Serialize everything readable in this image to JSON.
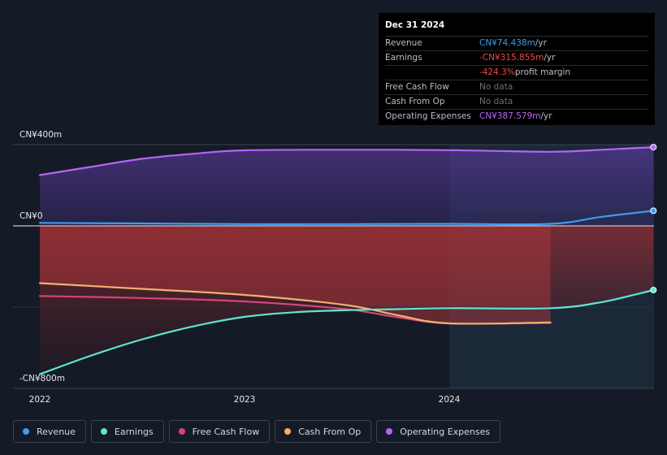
{
  "tooltip": {
    "date": "Dec 31 2024",
    "rows": [
      {
        "label": "Revenue",
        "value": "CN¥74.438m",
        "unit": "/yr",
        "color": "#3b9ded"
      },
      {
        "label": "Earnings",
        "value": "-CN¥315.855m",
        "unit": "/yr",
        "color": "#f04848"
      },
      {
        "label": "",
        "value": "-424.3%",
        "unit": "profit margin",
        "color": "#f04848"
      },
      {
        "label": "Free Cash Flow",
        "value": "No data",
        "unit": "",
        "color": "#6a717c"
      },
      {
        "label": "Cash From Op",
        "value": "No data",
        "unit": "",
        "color": "#6a717c"
      },
      {
        "label": "Operating Expenses",
        "value": "CN¥387.579m",
        "unit": "/yr",
        "color": "#b565f5"
      }
    ]
  },
  "axis": {
    "y_top": "CN¥400m",
    "y_zero": "CN¥0",
    "y_bottom": "-CN¥800m"
  },
  "legend": [
    {
      "label": "Revenue",
      "color": "#3b9ded"
    },
    {
      "label": "Earnings",
      "color": "#5ee6d0"
    },
    {
      "label": "Free Cash Flow",
      "color": "#d2457b"
    },
    {
      "label": "Cash From Op",
      "color": "#f0b070"
    },
    {
      "label": "Operating Expenses",
      "color": "#b565f5"
    }
  ],
  "chart_data": {
    "type": "area",
    "x_ticks": [
      "2022",
      "2023",
      "2024"
    ],
    "y_range": [
      -800,
      400
    ],
    "y_unit": "CN¥m",
    "highlight_start": "2024-01-01",
    "series": [
      {
        "name": "Revenue",
        "color": "#3b9ded",
        "points": [
          [
            "2022-01-01",
            15
          ],
          [
            "2022-07-01",
            12
          ],
          [
            "2023-01-01",
            9
          ],
          [
            "2023-07-01",
            9
          ],
          [
            "2024-01-01",
            10
          ],
          [
            "2024-06-30",
            10
          ],
          [
            "2024-09-30",
            45
          ],
          [
            "2024-12-31",
            74.438
          ]
        ]
      },
      {
        "name": "Earnings",
        "color": "#5ee6d0",
        "points": [
          [
            "2022-01-01",
            -730
          ],
          [
            "2022-04-01",
            -640
          ],
          [
            "2022-07-01",
            -560
          ],
          [
            "2022-10-01",
            -495
          ],
          [
            "2023-01-01",
            -448
          ],
          [
            "2023-04-01",
            -425
          ],
          [
            "2023-07-01",
            -415
          ],
          [
            "2023-10-01",
            -410
          ],
          [
            "2024-01-01",
            -405
          ],
          [
            "2024-06-30",
            -405
          ],
          [
            "2024-09-30",
            -375
          ],
          [
            "2024-12-31",
            -315.855
          ]
        ]
      },
      {
        "name": "Free Cash Flow",
        "color": "#d2457b",
        "points": [
          [
            "2022-01-01",
            -345
          ],
          [
            "2022-07-01",
            -355
          ],
          [
            "2023-01-01",
            -372
          ],
          [
            "2023-07-01",
            -410
          ],
          [
            "2023-10-01",
            -450
          ],
          [
            "2024-01-01",
            -480
          ],
          [
            "2024-06-30",
            -478
          ]
        ]
      },
      {
        "name": "Cash From Op",
        "color": "#f0b070",
        "points": [
          [
            "2022-01-01",
            -282
          ],
          [
            "2022-07-01",
            -310
          ],
          [
            "2023-01-01",
            -340
          ],
          [
            "2023-07-01",
            -390
          ],
          [
            "2023-10-01",
            -440
          ],
          [
            "2024-01-01",
            -480
          ],
          [
            "2024-06-30",
            -475
          ]
        ]
      },
      {
        "name": "Operating Expenses",
        "color": "#b565f5",
        "points": [
          [
            "2022-01-01",
            250
          ],
          [
            "2022-04-01",
            290
          ],
          [
            "2022-07-01",
            330
          ],
          [
            "2022-10-01",
            355
          ],
          [
            "2023-01-01",
            372
          ],
          [
            "2023-07-01",
            375
          ],
          [
            "2024-01-01",
            373
          ],
          [
            "2024-06-30",
            365
          ],
          [
            "2024-09-30",
            375
          ],
          [
            "2024-12-31",
            387.579
          ]
        ]
      }
    ]
  }
}
